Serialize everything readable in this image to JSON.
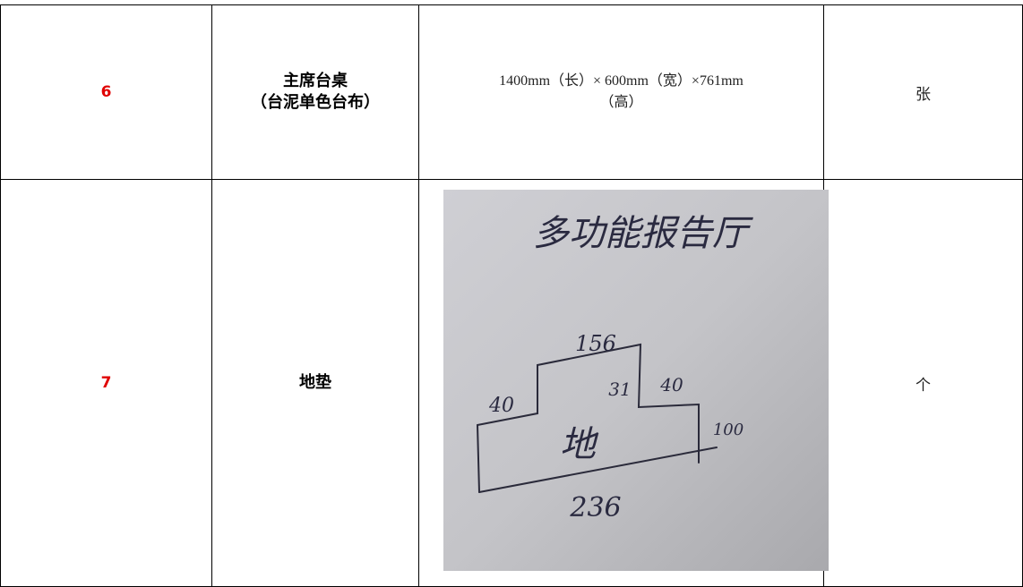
{
  "table": {
    "rows": [
      {
        "no": "6",
        "name": [
          "主席台桌",
          "（台泥单色台布）"
        ],
        "spec": [
          "1400mm（长）× 600mm（宽）×761mm",
          "（高）"
        ],
        "unit": "张"
      },
      {
        "no": "7",
        "name": [
          "地垫"
        ],
        "sketch": {
          "title": "多功能报告厅",
          "labels": [
            "156",
            "31",
            "40",
            "40",
            "100",
            "地",
            "236"
          ]
        },
        "unit": "个"
      }
    ]
  }
}
